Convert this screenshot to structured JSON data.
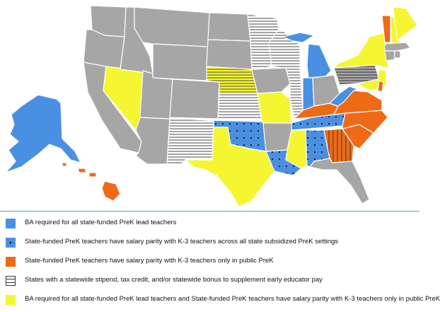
{
  "colors": {
    "gray": "#a6a6a6",
    "blue": "#4a90e2",
    "orange": "#ee6a16",
    "yellow": "#f5f531",
    "white": "#ffffff",
    "divider": "#5b9bd5"
  },
  "legend": [
    {
      "pattern": "blue",
      "label": "BA required for all state-funded PreK lead teachers"
    },
    {
      "pattern": "blue-dots",
      "label": "State-funded PreK teachers have salary parity with K-3 teachers across all state subsidized PreK settings"
    },
    {
      "pattern": "orange",
      "label": "State-funded PreK teachers have salary parity with K-3 teachers only in public PreK"
    },
    {
      "pattern": "white-stripes",
      "label": "States with a statewide stipend, tax credit, and/or statewide bonus to supplement early educator pay"
    },
    {
      "pattern": "yellow",
      "label": "BA required for all state-funded PreK lead teachers and State-funded PreK teachers have salary parity with K-3 teachers only in public PreK"
    }
  ]
}
